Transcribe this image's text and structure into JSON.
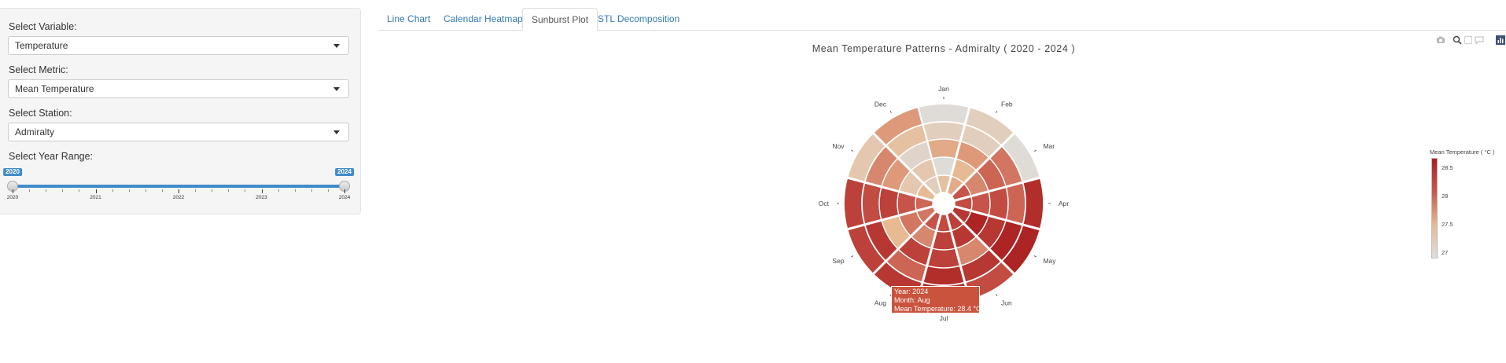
{
  "sidebar": {
    "variable": {
      "label": "Select Variable:",
      "value": "Temperature"
    },
    "metric": {
      "label": "Select Metric:",
      "value": "Mean Temperature"
    },
    "station": {
      "label": "Select Station:",
      "value": "Admiralty"
    },
    "year_range": {
      "label": "Select Year Range:",
      "min": 2020,
      "max": 2024,
      "from": 2020,
      "to": 2024,
      "from_label": "2020",
      "to_label": "2024",
      "ticks": [
        "2020",
        "2021",
        "2022",
        "2023",
        "2024"
      ]
    }
  },
  "tabs": [
    {
      "label": "Line Chart",
      "active": false
    },
    {
      "label": "Calendar Heatmap",
      "active": false
    },
    {
      "label": "Sunburst Plot",
      "active": true
    },
    {
      "label": "STL Decomposition",
      "active": false
    }
  ],
  "modebar": [
    "camera-icon",
    "zoom-icon",
    "box-select-icon",
    "comment-icon",
    "plotly-logo-icon"
  ],
  "chart_data": {
    "type": "sunburst",
    "title": "Mean Temperature Patterns - Admiralty ( 2020 - 2024 )",
    "months": [
      "Jan",
      "Feb",
      "Mar",
      "Apr",
      "May",
      "Jun",
      "Jul",
      "Aug",
      "Sep",
      "Oct",
      "Nov",
      "Dec"
    ],
    "years": [
      2020,
      2021,
      2022,
      2023,
      2024
    ],
    "unit": "°C",
    "values": {
      "2020": [
        27.4,
        27.6,
        28.1,
        28.2,
        28.4,
        28.3,
        28.2,
        28.1,
        27.9,
        28.0,
        27.5,
        27.2
      ],
      "2021": [
        27.0,
        27.5,
        27.8,
        28.1,
        28.6,
        28.4,
        28.3,
        27.8,
        27.9,
        28.1,
        27.3,
        27.3
      ],
      "2022": [
        27.6,
        27.7,
        28.0,
        28.2,
        28.4,
        27.8,
        28.3,
        28.3,
        27.5,
        28.3,
        27.7,
        27.1
      ],
      "2023": [
        27.2,
        27.2,
        27.9,
        28.0,
        28.6,
        28.4,
        28.5,
        28.0,
        28.4,
        28.2,
        27.8,
        27.4
      ],
      "2024": [
        27.0,
        27.2,
        27.0,
        28.5,
        28.6,
        28.2,
        28.5,
        28.4,
        28.3,
        28.3,
        27.3,
        27.7
      ]
    },
    "colorbar": {
      "title": "Mean Temperature ( °C )",
      "range": [
        26.95,
        28.65
      ],
      "ticks": [
        "28.5",
        "28",
        "27.5",
        "27"
      ],
      "colors": [
        "#dedede",
        "#e7b991",
        "#c8564b",
        "#a91f1f"
      ]
    },
    "tooltip": {
      "year": "Year: 2024",
      "month": "Month: Aug",
      "value": "Mean Temperature: 28.4 °C"
    }
  }
}
